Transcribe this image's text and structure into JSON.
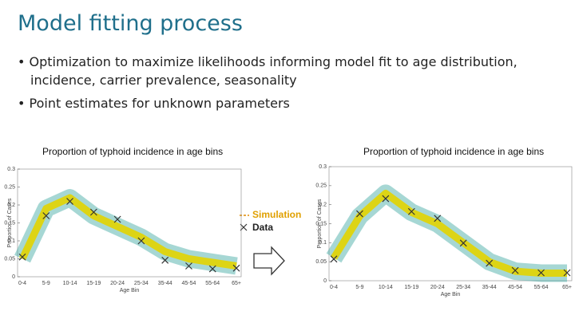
{
  "header": {
    "title": "Model fitting process"
  },
  "bullets": [
    "Optimization to maximize likelihoods informing model fit to age distribution, incidence, carrier prevalence, seasonality",
    "Point estimates for unknown parameters"
  ],
  "chart_data": [
    {
      "type": "line",
      "title": "Proportion of typhoid incidence in age bins",
      "x_label": "Age Bin",
      "y_label": "Proportion of Cases",
      "categories": [
        "0-4",
        "5-9",
        "10-14",
        "15-19",
        "20-24",
        "25-34",
        "35-44",
        "45-54",
        "55-64",
        "65+"
      ],
      "series": [
        {
          "name": "Simulation",
          "color": "#e3d400",
          "marker": "line",
          "values": [
            0.05,
            0.19,
            0.22,
            0.17,
            0.14,
            0.11,
            0.07,
            0.05,
            0.04,
            0.03
          ]
        },
        {
          "name": "Data",
          "color": "#333333",
          "marker": "x",
          "values": [
            0.055,
            0.17,
            0.21,
            0.18,
            0.16,
            0.1,
            0.046,
            0.03,
            0.022,
            0.024
          ]
        }
      ],
      "ylim": [
        0,
        0.3
      ],
      "yticks": [
        0,
        0.05,
        0.1,
        0.15,
        0.2,
        0.25,
        0.3
      ]
    },
    {
      "type": "line",
      "title": "Proportion of typhoid incidence in age bins",
      "x_label": "Age Bin",
      "y_label": "Proportion of Cases",
      "categories": [
        "0-4",
        "5-9",
        "10-14",
        "15-19",
        "20-24",
        "25-34",
        "35-44",
        "45-54",
        "55-64",
        "65+"
      ],
      "series": [
        {
          "color": "#e3d400",
          "marker": "line",
          "values": [
            0.06,
            0.17,
            0.23,
            0.18,
            0.15,
            0.1,
            0.05,
            0.025,
            0.02,
            0.02
          ]
        },
        {
          "color": "#333333",
          "marker": "x",
          "values": [
            0.057,
            0.176,
            0.216,
            0.182,
            0.164,
            0.099,
            0.046,
            0.027,
            0.021,
            0.021
          ]
        }
      ],
      "ylim": [
        0,
        0.3
      ],
      "yticks": [
        0,
        0.05,
        0.1,
        0.15,
        0.2,
        0.25,
        0.3
      ]
    }
  ]
}
